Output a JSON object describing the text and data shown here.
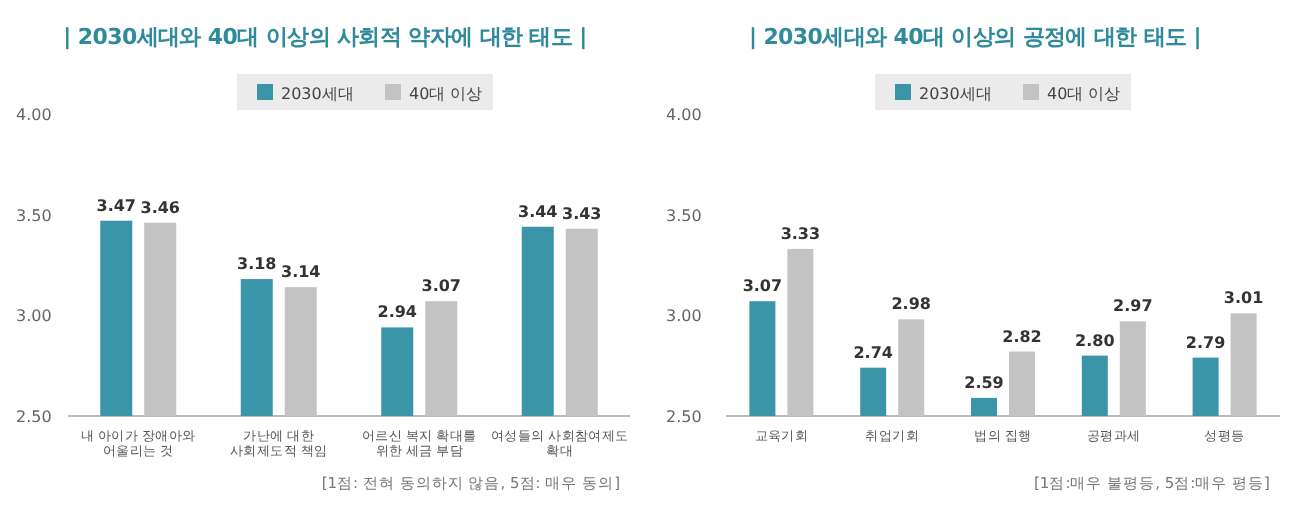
{
  "chart_data": [
    {
      "type": "bar",
      "title": "| 2030세대와 40대 이상의 사회적 약자에 대한 태도 |",
      "categories": [
        "내 아이가 장애아와\n어울리는 것",
        "가난에 대한\n사회제도적 책임",
        "어르신 복지 확대를\n위한 세금 부담",
        "여성들의 사회참여제도\n확대"
      ],
      "series": [
        {
          "name": "2030세대",
          "color": "#3a95a8",
          "values": [
            3.47,
            3.18,
            2.94,
            3.44
          ],
          "value_labels": [
            "3.47",
            "3.18",
            "2.94",
            "3.44"
          ]
        },
        {
          "name": "40대 이상",
          "color": "#c3c3c3",
          "values": [
            3.46,
            3.14,
            3.07,
            3.43
          ],
          "value_labels": [
            "3.46",
            "3.14",
            "3.07",
            "3.43"
          ]
        }
      ],
      "ylim": [
        2.5,
        4.0
      ],
      "yticks": [
        {
          "value": 2.5,
          "label": "2.50"
        },
        {
          "value": 3.0,
          "label": "3.00"
        },
        {
          "value": 3.5,
          "label": "3.50"
        },
        {
          "value": 4.0,
          "label": "4.00"
        }
      ],
      "legend": "top",
      "annotations": [
        "[1점: 전혀 동의하지 않음, 5점: 매우 동의]"
      ]
    },
    {
      "type": "bar",
      "title": "| 2030세대와 40대 이상의 공정에 대한 태도 |",
      "categories": [
        "교육기회",
        "취업기회",
        "법의 집행",
        "공평과세",
        "성평등"
      ],
      "series": [
        {
          "name": "2030세대",
          "color": "#3a95a8",
          "values": [
            3.07,
            2.74,
            2.59,
            2.8,
            2.79
          ],
          "value_labels": [
            "3.07",
            "2.74",
            "2.59",
            "2.80",
            "2.79"
          ]
        },
        {
          "name": "40대 이상",
          "color": "#c3c3c3",
          "values": [
            3.33,
            2.98,
            2.82,
            2.97,
            3.01
          ],
          "value_labels": [
            "3.33",
            "2.98",
            "2.82",
            "2.97",
            "3.01"
          ]
        }
      ],
      "ylim": [
        2.5,
        4.0
      ],
      "yticks": [
        {
          "value": 2.5,
          "label": "2.50"
        },
        {
          "value": 3.0,
          "label": "3.00"
        },
        {
          "value": 3.5,
          "label": "3.50"
        },
        {
          "value": 4.0,
          "label": "4.00"
        }
      ],
      "legend": "top",
      "annotations": [
        "[1점:매우 불평등, 5점:매우 평등]"
      ]
    }
  ]
}
